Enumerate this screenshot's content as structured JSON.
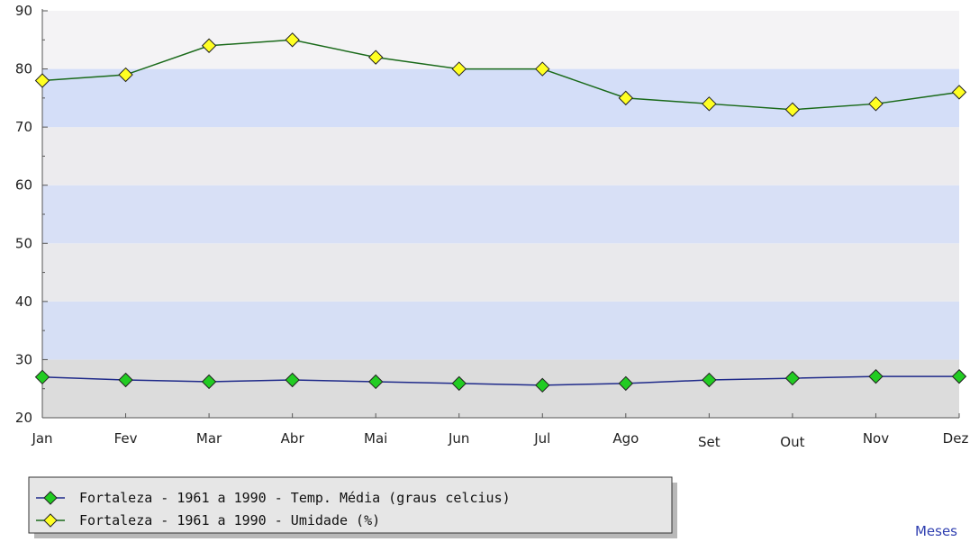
{
  "chart_data": {
    "type": "line",
    "title": "",
    "xlabel": "Meses",
    "ylabel": "",
    "ylim": [
      20,
      90
    ],
    "yticks": [
      "20",
      "30",
      "40",
      "50",
      "60",
      "70",
      "80",
      "90"
    ],
    "categories": [
      "Jan",
      "Fev",
      "Mar",
      "Abr",
      "Mai",
      "Jun",
      "Jul",
      "Ago",
      "Set",
      "Out",
      "Nov",
      "Dez"
    ],
    "series": [
      {
        "name": "Fortaleza - 1961 a 1990 - Temp. Média (graus celcius)",
        "line_color": "#1f2a8a",
        "marker_color": "#22cc22",
        "values": [
          27.0,
          26.5,
          26.2,
          26.5,
          26.2,
          25.9,
          25.6,
          25.9,
          26.5,
          26.8,
          27.1,
          27.1
        ]
      },
      {
        "name": "Fortaleza - 1961 a 1990 - Umidade (%)",
        "line_color": "#1a6a1a",
        "marker_color": "#ffff22",
        "values": [
          78,
          79,
          84,
          85,
          82,
          80,
          80,
          75,
          74,
          73,
          74,
          76
        ]
      }
    ],
    "band_colors": [
      "#dcdcdc",
      "#d6dff5",
      "#e9e9ec",
      "#d8e0f6",
      "#ecebee",
      "#d4def8",
      "#f4f3f5"
    ],
    "grid": false,
    "legend_position": "bottom-left"
  }
}
